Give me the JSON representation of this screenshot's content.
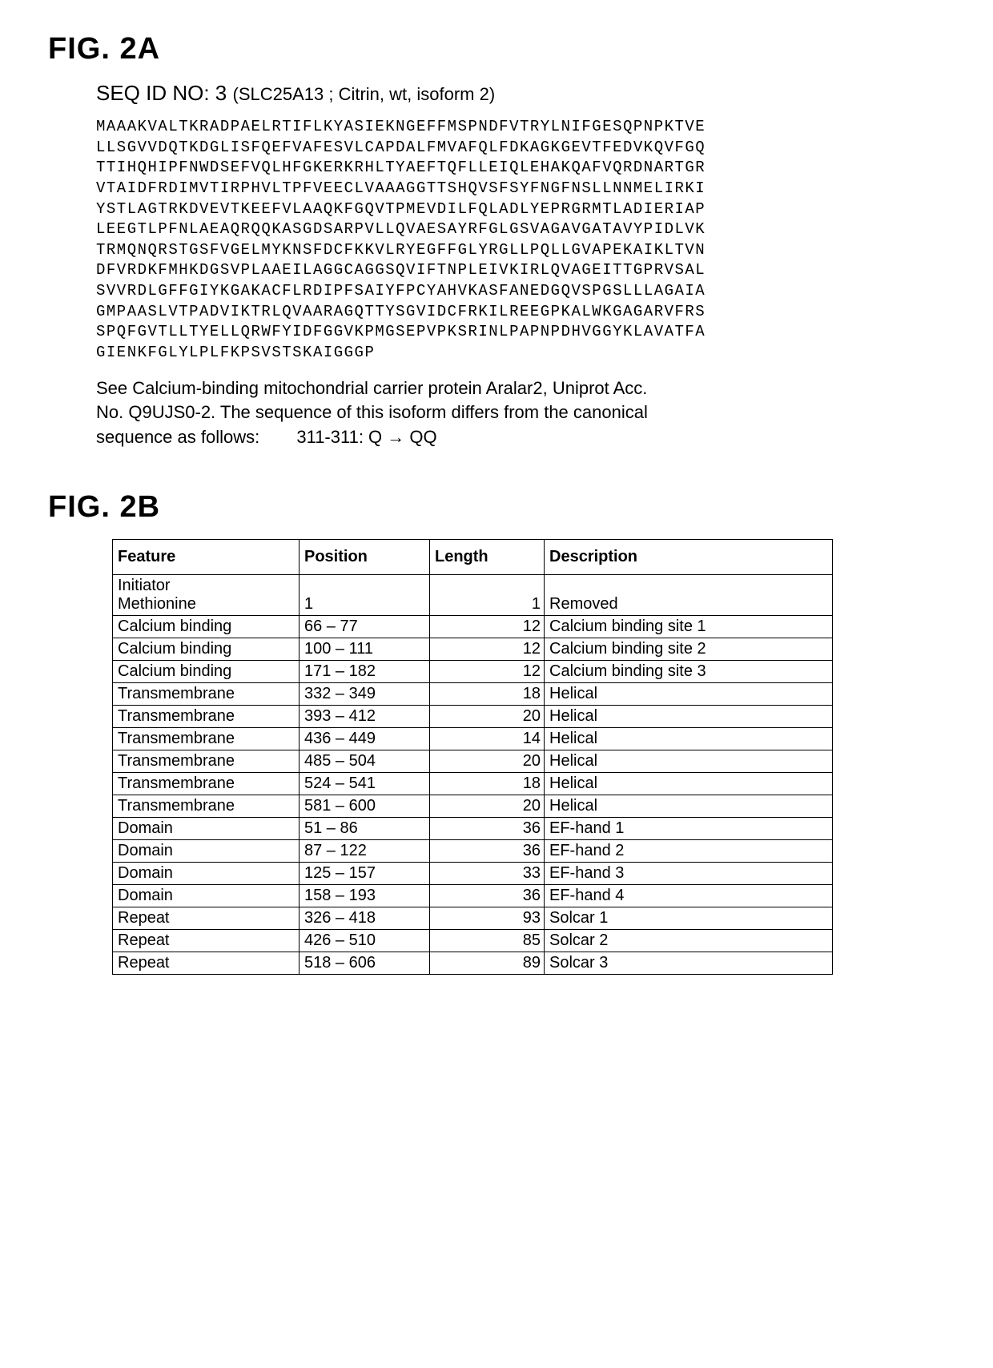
{
  "fig2a": {
    "label": "FIG. 2A",
    "seq_id_label": "SEQ ID NO: 3",
    "seq_sub": "(SLC25A13 ; Citrin, wt, isoform 2)",
    "sequence_lines": [
      "MAAAKVALTKRADPAELRTIFLKYASIEKNGEFFMSPNDFVTRYLNIFGESQPNPKTVE",
      "LLSGVVDQTKDGLISFQEFVAFESVLCAPDALFMVAFQLFDKAGKGEVTFEDVKQVFGQ",
      "TTIHQHIPFNWDSEFVQLHFGKERKRHLTYAEFTQFLLEIQLEHAKQAFVQRDNARTGR",
      "VTAIDFRDIMVTIRPHVLTPFVEECLVAAAGGTTSHQVSFSYFNGFNSLLNNMELIRKI",
      "YSTLAGTRKDVEVTKEEFVLAAQKFGQVTPMEVDILFQLADLYEPRGRMTLADIERIAP",
      "LEEGTLPFNLAEAQRQQKASGDSARPVLLQVAESAYRFGLGSVAGAVGATAVYPIDLVK",
      "TRMQNQRSTGSFVGELMYKNSFDCFKKVLRYEGFFGLYRGLLPQLLGVAPEKAIKLTVN",
      "DFVRDKFMHKDGSVPLAAEILAGGCAGGSQVIFTNPLEIVKIRLQVAGEITTGPRVSAL",
      "SVVRDLGFFGIYKGAKACFLRDIPFSAIYFPCYAHVKASFANEDGQVSPGSLLLAGAIA",
      "GMPAASLVTPADVIKTRLQVAARAGQTTYSGVIDCFRKILREEGPKALWKGAGARVFRS",
      "SPQFGVTLLTYELLQRWFYIDFGGVKPMGSEPVPKSRINLPAPNPDHVGGYKLAVATFA",
      "GIENKFGLYLPLFKPSVSTSKAIGGGP"
    ],
    "note_line1": "See Calcium-binding mitochondrial carrier protein Aralar2, Uniprot Acc.",
    "note_line2": "No. Q9UJS0-2. The sequence of this isoform differs from the canonical",
    "note_line3_a": "sequence as follows:",
    "note_line3_b": "311-311: Q → QQ"
  },
  "fig2b": {
    "label": "FIG. 2B",
    "columns": [
      "Feature",
      "Position",
      "Length",
      "Description"
    ],
    "rows": [
      {
        "feature": "Initiator Methionine",
        "position": "1",
        "length": "1",
        "desc": "Removed"
      },
      {
        "feature": "Calcium binding",
        "position": "66 – 77",
        "length": "12",
        "desc": "Calcium binding site 1"
      },
      {
        "feature": "Calcium binding",
        "position": "100 – 111",
        "length": "12",
        "desc": "Calcium binding site 2"
      },
      {
        "feature": "Calcium binding",
        "position": "171 – 182",
        "length": "12",
        "desc": "Calcium binding site 3"
      },
      {
        "feature": "Transmembrane",
        "position": "332 – 349",
        "length": "18",
        "desc": "Helical"
      },
      {
        "feature": "Transmembrane",
        "position": "393 – 412",
        "length": "20",
        "desc": "Helical"
      },
      {
        "feature": "Transmembrane",
        "position": "436 – 449",
        "length": "14",
        "desc": "Helical"
      },
      {
        "feature": "Transmembrane",
        "position": "485 – 504",
        "length": "20",
        "desc": "Helical"
      },
      {
        "feature": "Transmembrane",
        "position": "524 – 541",
        "length": "18",
        "desc": "Helical"
      },
      {
        "feature": "Transmembrane",
        "position": "581 – 600",
        "length": "20",
        "desc": "Helical"
      },
      {
        "feature": "Domain",
        "position": "51 – 86",
        "length": "36",
        "desc": "EF-hand 1"
      },
      {
        "feature": "Domain",
        "position": "87 – 122",
        "length": "36",
        "desc": "EF-hand 2"
      },
      {
        "feature": "Domain",
        "position": "125 – 157",
        "length": "33",
        "desc": "EF-hand 3"
      },
      {
        "feature": "Domain",
        "position": "158 – 193",
        "length": "36",
        "desc": "EF-hand 4"
      },
      {
        "feature": "Repeat",
        "position": "326 – 418",
        "length": "93",
        "desc": "Solcar 1"
      },
      {
        "feature": "Repeat",
        "position": "426 – 510",
        "length": "85",
        "desc": "Solcar 2"
      },
      {
        "feature": "Repeat",
        "position": "518 – 606",
        "length": "89",
        "desc": "Solcar 3"
      }
    ]
  }
}
